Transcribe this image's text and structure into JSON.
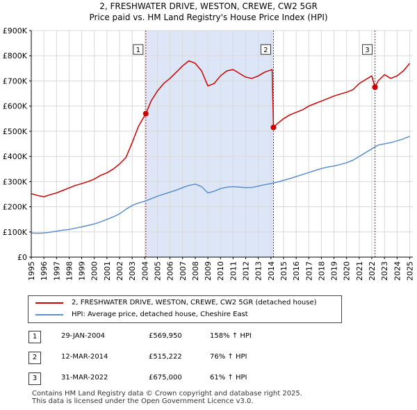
{
  "chart_data": {
    "type": "line",
    "title": "2, FRESHWATER DRIVE, WESTON, CREWE, CW2 5GR",
    "subtitle": "Price paid vs. HM Land Registry's House Price Index (HPI)",
    "xlim": [
      1995,
      2025.25
    ],
    "ylim": [
      0,
      900000
    ],
    "x_ticks": [
      1995,
      1996,
      1997,
      1998,
      1999,
      2000,
      2001,
      2002,
      2003,
      2004,
      2005,
      2006,
      2007,
      2008,
      2009,
      2010,
      2011,
      2012,
      2013,
      2014,
      2015,
      2016,
      2017,
      2018,
      2019,
      2020,
      2021,
      2022,
      2023,
      2024,
      2025
    ],
    "y_ticks": [
      0,
      100000,
      200000,
      300000,
      400000,
      500000,
      600000,
      700000,
      800000,
      900000
    ],
    "y_tick_labels": [
      "£0",
      "£100K",
      "£200K",
      "£300K",
      "£400K",
      "£500K",
      "£600K",
      "£700K",
      "£800K",
      "£900K"
    ],
    "grid": true,
    "shaded_region": [
      2004.08,
      2014.2
    ],
    "series": [
      {
        "name": "2, FRESHWATER DRIVE, WESTON, CREWE, CW2 5GR (detached house)",
        "color": "#cc0000",
        "points": [
          [
            1995.0,
            252000
          ],
          [
            1995.5,
            245000
          ],
          [
            1996.0,
            240000
          ],
          [
            1996.5,
            248000
          ],
          [
            1997.0,
            255000
          ],
          [
            1997.5,
            265000
          ],
          [
            1998.0,
            275000
          ],
          [
            1998.5,
            285000
          ],
          [
            1999.0,
            292000
          ],
          [
            1999.5,
            300000
          ],
          [
            2000.0,
            310000
          ],
          [
            2000.5,
            325000
          ],
          [
            2001.0,
            335000
          ],
          [
            2001.5,
            350000
          ],
          [
            2002.0,
            370000
          ],
          [
            2002.5,
            395000
          ],
          [
            2003.0,
            455000
          ],
          [
            2003.5,
            520000
          ],
          [
            2004.08,
            569950
          ],
          [
            2004.5,
            620000
          ],
          [
            2005.0,
            660000
          ],
          [
            2005.5,
            690000
          ],
          [
            2006.0,
            710000
          ],
          [
            2006.5,
            735000
          ],
          [
            2007.0,
            760000
          ],
          [
            2007.5,
            780000
          ],
          [
            2008.0,
            770000
          ],
          [
            2008.5,
            740000
          ],
          [
            2009.0,
            680000
          ],
          [
            2009.5,
            690000
          ],
          [
            2010.0,
            720000
          ],
          [
            2010.5,
            740000
          ],
          [
            2011.0,
            745000
          ],
          [
            2011.5,
            730000
          ],
          [
            2012.0,
            715000
          ],
          [
            2012.5,
            710000
          ],
          [
            2013.0,
            720000
          ],
          [
            2013.5,
            735000
          ],
          [
            2014.1,
            745000
          ],
          [
            2014.2,
            515222
          ],
          [
            2014.5,
            530000
          ],
          [
            2015.0,
            550000
          ],
          [
            2015.5,
            565000
          ],
          [
            2016.0,
            575000
          ],
          [
            2016.5,
            585000
          ],
          [
            2017.0,
            600000
          ],
          [
            2017.5,
            610000
          ],
          [
            2018.0,
            620000
          ],
          [
            2018.5,
            630000
          ],
          [
            2019.0,
            640000
          ],
          [
            2019.5,
            648000
          ],
          [
            2020.0,
            655000
          ],
          [
            2020.5,
            665000
          ],
          [
            2021.0,
            690000
          ],
          [
            2021.5,
            705000
          ],
          [
            2022.0,
            720000
          ],
          [
            2022.25,
            675000
          ],
          [
            2022.5,
            700000
          ],
          [
            2023.0,
            725000
          ],
          [
            2023.5,
            710000
          ],
          [
            2024.0,
            720000
          ],
          [
            2024.5,
            740000
          ],
          [
            2025.0,
            770000
          ]
        ]
      },
      {
        "name": "HPI: Average price, detached house, Cheshire East",
        "color": "#5b8ecb",
        "points": [
          [
            1995.0,
            96000
          ],
          [
            1995.5,
            95000
          ],
          [
            1996.0,
            96000
          ],
          [
            1996.5,
            99000
          ],
          [
            1997.0,
            103000
          ],
          [
            1997.5,
            107000
          ],
          [
            1998.0,
            110000
          ],
          [
            1998.5,
            115000
          ],
          [
            1999.0,
            120000
          ],
          [
            1999.5,
            126000
          ],
          [
            2000.0,
            132000
          ],
          [
            2000.5,
            140000
          ],
          [
            2001.0,
            150000
          ],
          [
            2001.5,
            160000
          ],
          [
            2002.0,
            172000
          ],
          [
            2002.5,
            190000
          ],
          [
            2003.0,
            205000
          ],
          [
            2003.5,
            215000
          ],
          [
            2004.0,
            222000
          ],
          [
            2004.5,
            232000
          ],
          [
            2005.0,
            242000
          ],
          [
            2005.5,
            250000
          ],
          [
            2006.0,
            258000
          ],
          [
            2006.5,
            266000
          ],
          [
            2007.0,
            276000
          ],
          [
            2007.5,
            285000
          ],
          [
            2008.0,
            290000
          ],
          [
            2008.5,
            280000
          ],
          [
            2009.0,
            255000
          ],
          [
            2009.5,
            262000
          ],
          [
            2010.0,
            272000
          ],
          [
            2010.5,
            278000
          ],
          [
            2011.0,
            280000
          ],
          [
            2011.5,
            278000
          ],
          [
            2012.0,
            276000
          ],
          [
            2012.5,
            277000
          ],
          [
            2013.0,
            282000
          ],
          [
            2013.5,
            288000
          ],
          [
            2014.0,
            292000
          ],
          [
            2014.5,
            298000
          ],
          [
            2015.0,
            305000
          ],
          [
            2015.5,
            312000
          ],
          [
            2016.0,
            320000
          ],
          [
            2016.5,
            328000
          ],
          [
            2017.0,
            336000
          ],
          [
            2017.5,
            344000
          ],
          [
            2018.0,
            352000
          ],
          [
            2018.5,
            358000
          ],
          [
            2019.0,
            362000
          ],
          [
            2019.5,
            368000
          ],
          [
            2020.0,
            375000
          ],
          [
            2020.5,
            385000
          ],
          [
            2021.0,
            400000
          ],
          [
            2021.5,
            415000
          ],
          [
            2022.0,
            430000
          ],
          [
            2022.5,
            445000
          ],
          [
            2023.0,
            450000
          ],
          [
            2023.5,
            455000
          ],
          [
            2024.0,
            462000
          ],
          [
            2024.5,
            470000
          ],
          [
            2025.0,
            480000
          ]
        ]
      }
    ],
    "sales": [
      {
        "num": "1",
        "x": 2004.08,
        "y": 569950
      },
      {
        "num": "2",
        "x": 2014.2,
        "y": 515222
      },
      {
        "num": "3",
        "x": 2022.25,
        "y": 675000
      }
    ],
    "annotation_y": 800000
  },
  "legend": {
    "property": "2, FRESHWATER DRIVE, WESTON, CREWE, CW2 5GR (detached house)",
    "hpi": "HPI: Average price, detached house, Cheshire East"
  },
  "sales_table": [
    {
      "num": "1",
      "date": "29-JAN-2004",
      "price": "£569,950",
      "hpi": "158% ↑ HPI"
    },
    {
      "num": "2",
      "date": "12-MAR-2014",
      "price": "£515,222",
      "hpi": "76% ↑ HPI"
    },
    {
      "num": "3",
      "date": "31-MAR-2022",
      "price": "£675,000",
      "hpi": "61% ↑ HPI"
    }
  ],
  "footer": {
    "line1": "Contains HM Land Registry data © Crown copyright and database right 2025.",
    "line2": "This data is licensed under the Open Government Licence v3.0."
  },
  "colors": {
    "property_line": "#cc0000",
    "hpi_line": "#5b8ecb",
    "shade": "#dde6f7",
    "vline": "#cc0000"
  }
}
